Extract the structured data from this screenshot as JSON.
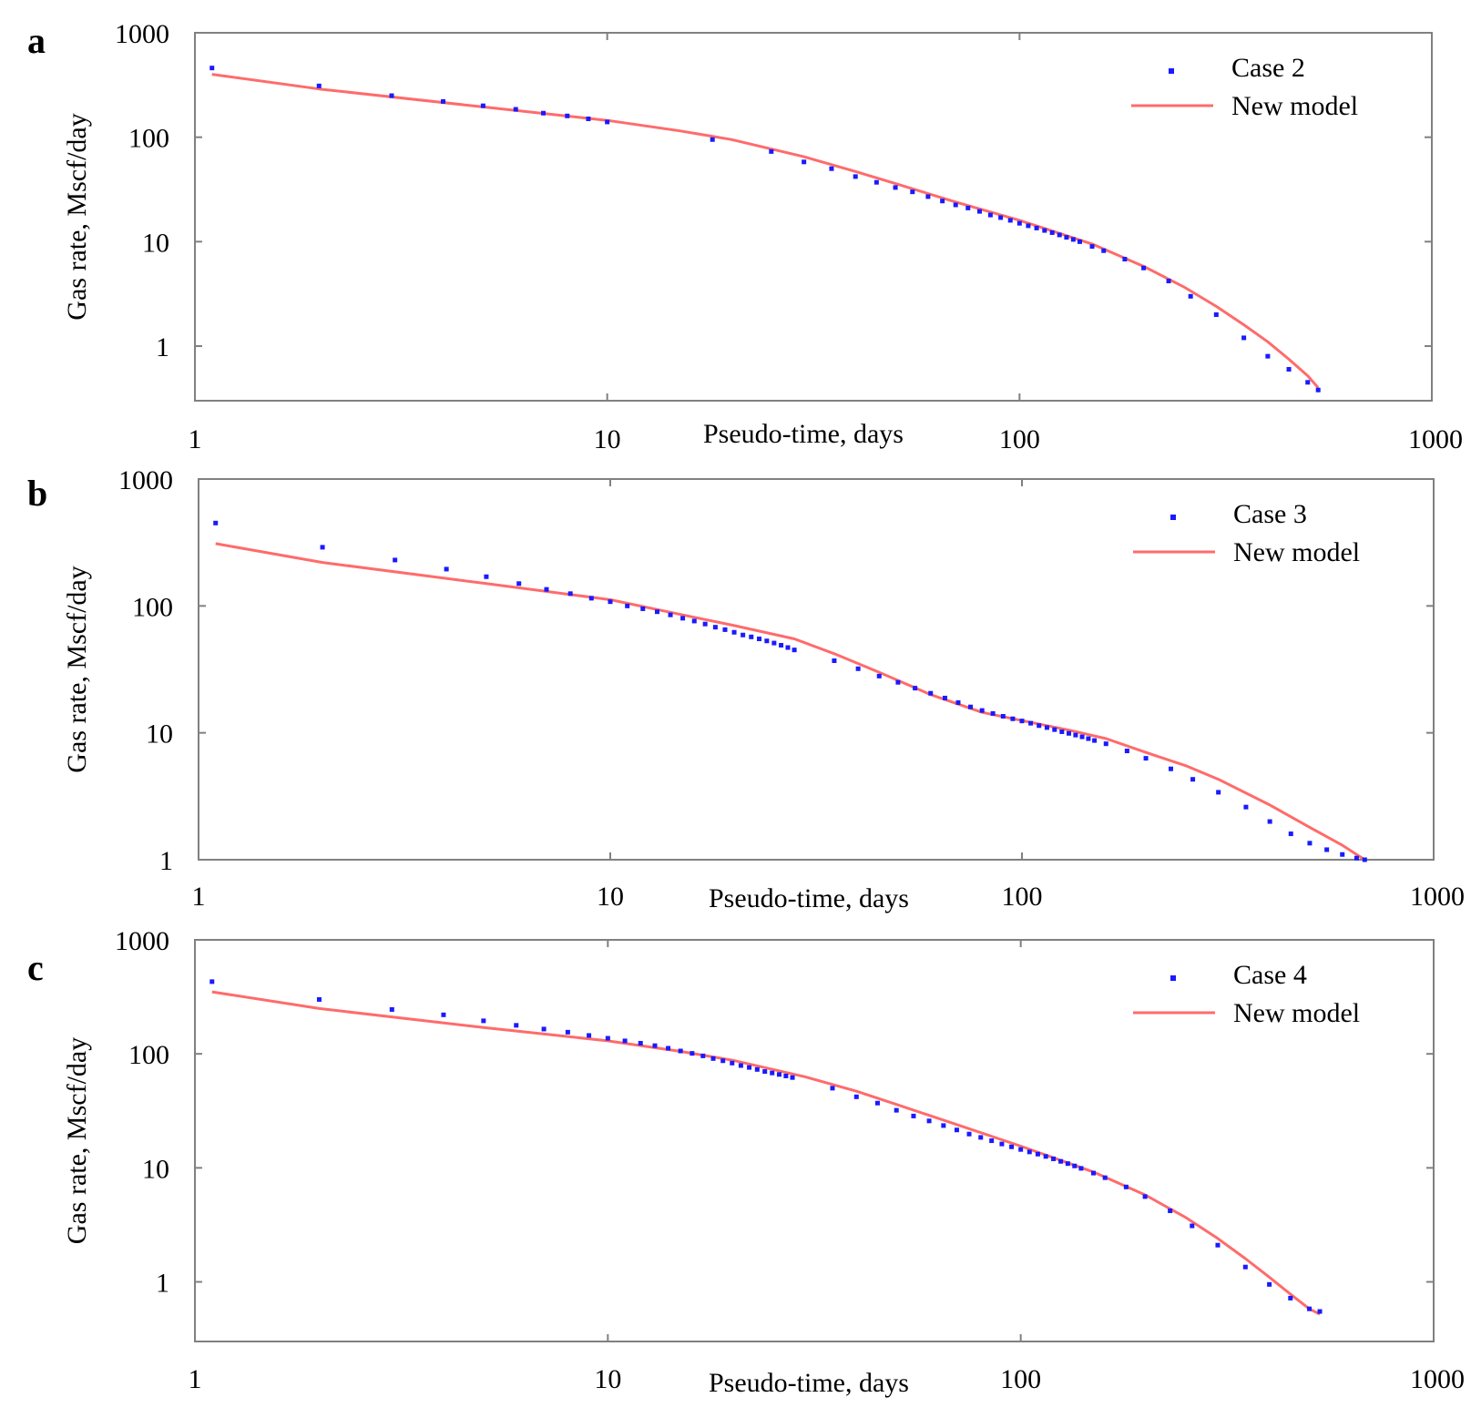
{
  "figure": {
    "chart_data": [
      {
        "type": "scatter",
        "panel_label": "a",
        "xlabel": "Pseudo-time, days",
        "ylabel": "Gas rate, Mscf/day",
        "xscale": "log",
        "yscale": "log",
        "xlim": [
          1,
          1000
        ],
        "ylim": [
          0.3,
          1000
        ],
        "xticks": [
          1,
          10,
          100,
          1000
        ],
        "xtick_labels": [
          "1",
          "10",
          "100",
          "1000"
        ],
        "yticks": [
          1,
          10,
          100,
          1000
        ],
        "ytick_labels": [
          "1",
          "10",
          "100",
          "1000"
        ],
        "legend_position": "top-right",
        "legend": [
          "Case 2",
          "New model"
        ],
        "series": [
          {
            "name": "Case 2",
            "kind": "points",
            "color": "#1a1aff",
            "x": [
              1.1,
              2,
              3,
              4,
              5,
              6,
              7,
              8,
              9,
              10,
              18,
              25,
              30,
              35,
              40,
              45,
              50,
              55,
              60,
              65,
              70,
              75,
              80,
              85,
              90,
              95,
              100,
              105,
              110,
              115,
              120,
              125,
              130,
              135,
              140,
              150,
              160,
              180,
              200,
              230,
              260,
              300,
              350,
              400,
              450,
              500,
              530
            ],
            "y": [
              460,
              310,
              250,
              220,
              200,
              185,
              170,
              160,
              150,
              140,
              95,
              73,
              58,
              50,
              42,
              37,
              33,
              30,
              27,
              24.5,
              22.5,
              21,
              19.5,
              18,
              17,
              16,
              15,
              14.2,
              13.5,
              12.8,
              12.2,
              11.6,
              11,
              10.5,
              10,
              9,
              8.2,
              6.8,
              5.6,
              4.2,
              3,
              2,
              1.2,
              0.8,
              0.6,
              0.45,
              0.38
            ]
          },
          {
            "name": "New model",
            "kind": "line",
            "color": "#ff6b6b",
            "x": [
              1.1,
              2,
              5,
              10,
              15,
              20,
              30,
              40,
              50,
              70,
              100,
              150,
              200,
              250,
              300,
              350,
              400,
              450,
              500,
              530
            ],
            "y": [
              400,
              290,
              195,
              145,
              115,
              95,
              65,
              47,
              36,
              24,
              16,
              9.5,
              5.8,
              3.7,
              2.4,
              1.6,
              1.1,
              0.75,
              0.52,
              0.4
            ]
          }
        ]
      },
      {
        "type": "scatter",
        "panel_label": "b",
        "xlabel": "Pseudo-time, days",
        "ylabel": "Gas rate, Mscf/day",
        "xscale": "log",
        "yscale": "log",
        "xlim": [
          1,
          1000
        ],
        "ylim": [
          1,
          1000
        ],
        "xticks": [
          1,
          10,
          100,
          1000
        ],
        "xtick_labels": [
          "1",
          "10",
          "100",
          "1000"
        ],
        "yticks": [
          1,
          10,
          100,
          1000
        ],
        "ytick_labels": [
          "1",
          "10",
          "100",
          "1000"
        ],
        "legend_position": "top-right",
        "legend": [
          "Case 3",
          "New model"
        ],
        "series": [
          {
            "name": "Case 3",
            "kind": "points",
            "color": "#1a1aff",
            "x": [
              1.1,
              2,
              3,
              4,
              5,
              6,
              7,
              8,
              9,
              10,
              11,
              12,
              13,
              14,
              15,
              16,
              17,
              18,
              19,
              20,
              21,
              22,
              23,
              24,
              25,
              26,
              27,
              28,
              35,
              40,
              45,
              50,
              55,
              60,
              65,
              70,
              75,
              80,
              85,
              90,
              95,
              100,
              105,
              110,
              115,
              120,
              125,
              130,
              135,
              140,
              145,
              150,
              160,
              180,
              200,
              230,
              260,
              300,
              350,
              400,
              450,
              500,
              550,
              600,
              650,
              680
            ],
            "y": [
              450,
              290,
              230,
              195,
              170,
              150,
              135,
              125,
              115,
              108,
              100,
              95,
              90,
              85,
              80,
              76,
              72,
              68,
              65,
              62,
              59,
              57,
              55,
              53,
              51,
              49,
              47,
              45,
              37,
              32,
              28,
              25,
              22.5,
              20.5,
              18.8,
              17.3,
              16,
              15,
              14.2,
              13.5,
              12.9,
              12.4,
              11.9,
              11.4,
              11,
              10.6,
              10.2,
              9.9,
              9.6,
              9.3,
              9.0,
              8.7,
              8.2,
              7.2,
              6.3,
              5.2,
              4.3,
              3.4,
              2.6,
              2.0,
              1.6,
              1.35,
              1.2,
              1.1,
              1.03,
              1.0
            ]
          },
          {
            "name": "New model",
            "kind": "line",
            "color": "#ff6b6b",
            "x": [
              1.1,
              2,
              5,
              10,
              15,
              20,
              28,
              35,
              45,
              60,
              80,
              100,
              130,
              160,
              200,
              250,
              300,
              400,
              500,
              600,
              680
            ],
            "y": [
              310,
              220,
              150,
              112,
              85,
              70,
              55,
              42,
              30,
              20,
              14.5,
              12.5,
              10.5,
              9,
              7,
              5.5,
              4.3,
              2.7,
              1.8,
              1.3,
              1.0
            ]
          }
        ]
      },
      {
        "type": "scatter",
        "panel_label": "c",
        "xlabel": "Pseudo-time, days",
        "ylabel": "Gas rate, Mscf/day",
        "xscale": "log",
        "yscale": "log",
        "xlim": [
          1,
          1000
        ],
        "ylim": [
          0.3,
          1000
        ],
        "xticks": [
          1,
          10,
          100,
          1000
        ],
        "xtick_labels": [
          "1",
          "10",
          "100",
          "1000"
        ],
        "yticks": [
          1,
          10,
          100,
          1000
        ],
        "ytick_labels": [
          "1",
          "10",
          "100",
          "1000"
        ],
        "legend_position": "top-right",
        "legend": [
          "Case 4",
          "New model"
        ],
        "series": [
          {
            "name": "Case 4",
            "kind": "points",
            "color": "#1a1aff",
            "x": [
              1.1,
              2,
              3,
              4,
              5,
              6,
              7,
              8,
              9,
              10,
              11,
              12,
              13,
              14,
              15,
              16,
              17,
              18,
              19,
              20,
              21,
              22,
              23,
              24,
              25,
              26,
              27,
              28,
              35,
              40,
              45,
              50,
              55,
              60,
              65,
              70,
              75,
              80,
              85,
              90,
              95,
              100,
              105,
              110,
              115,
              120,
              125,
              130,
              135,
              140,
              150,
              160,
              180,
              200,
              230,
              260,
              300,
              350,
              400,
              450,
              500,
              530
            ],
            "y": [
              430,
              300,
              245,
              220,
              195,
              178,
              165,
              155,
              145,
              137,
              130,
              124,
              118,
              112,
              106,
              101,
              96,
              91,
              87,
              83,
              79,
              76,
              73,
              70,
              68,
              66,
              64,
              62,
              50,
              42,
              37,
              32,
              28.5,
              25.8,
              23.5,
              21.5,
              19.8,
              18.5,
              17.3,
              16.2,
              15.3,
              14.5,
              13.8,
              13.2,
              12.6,
              12,
              11.4,
              10.9,
              10.4,
              9.9,
              9.0,
              8.2,
              6.8,
              5.6,
              4.2,
              3.1,
              2.1,
              1.35,
              0.95,
              0.72,
              0.58,
              0.55
            ]
          },
          {
            "name": "New model",
            "kind": "line",
            "color": "#ff6b6b",
            "x": [
              1.1,
              2,
              5,
              10,
              15,
              20,
              30,
              40,
              50,
              70,
              100,
              150,
              200,
              250,
              300,
              350,
              400,
              450,
              500,
              530
            ],
            "y": [
              350,
              250,
              170,
              130,
              105,
              88,
              63,
              47,
              36,
              24,
              15.5,
              9.2,
              5.8,
              3.7,
              2.4,
              1.6,
              1.1,
              0.78,
              0.58,
              0.52
            ]
          }
        ]
      }
    ]
  }
}
